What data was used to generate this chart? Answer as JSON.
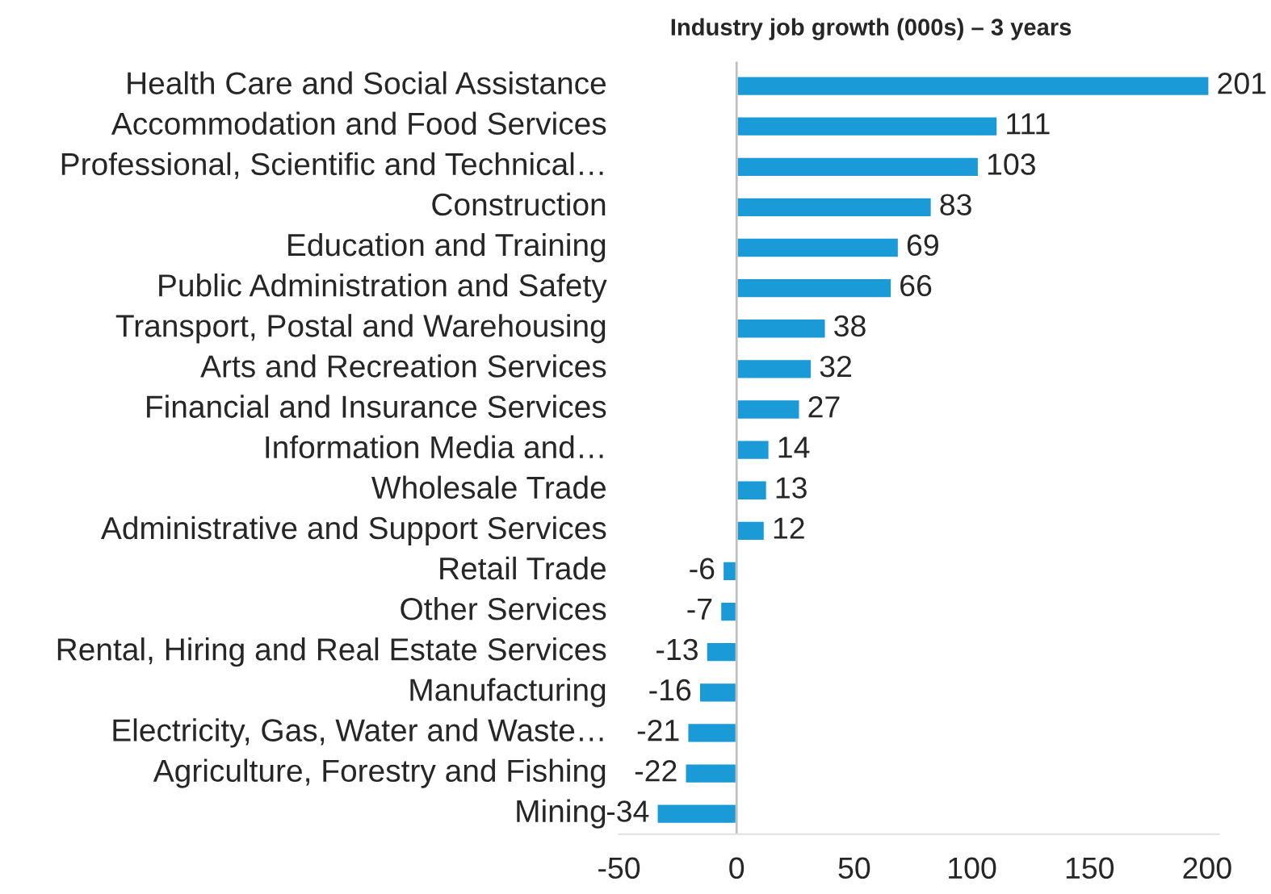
{
  "chart_data": {
    "type": "bar",
    "orientation": "horizontal",
    "title": "Industry job growth (000s) – 3 years",
    "categories": [
      "Health Care and Social Assistance",
      "Accommodation and Food Services",
      "Professional, Scientific and Technical…",
      "Construction",
      "Education and Training",
      "Public Administration and Safety",
      "Transport, Postal and Warehousing",
      "Arts and Recreation Services",
      "Financial and Insurance Services",
      "Information Media and…",
      "Wholesale Trade",
      "Administrative and Support Services",
      "Retail Trade",
      "Other Services",
      "Rental, Hiring and Real Estate Services",
      "Manufacturing",
      "Electricity, Gas, Water and Waste…",
      "Agriculture, Forestry and Fishing",
      "Mining"
    ],
    "values": [
      201,
      111,
      103,
      83,
      69,
      66,
      38,
      32,
      27,
      14,
      13,
      12,
      -6,
      -7,
      -13,
      -16,
      -21,
      -22,
      -34
    ],
    "color": "#1a9ad6",
    "xlim": [
      -50,
      205
    ],
    "xticks": [
      -50,
      0,
      50,
      100,
      150,
      200
    ],
    "ref_lines": [
      {
        "axis": "x",
        "value": 0,
        "color": "#bfbfbf"
      }
    ],
    "data_labels": true,
    "grid": false,
    "legend": false
  }
}
